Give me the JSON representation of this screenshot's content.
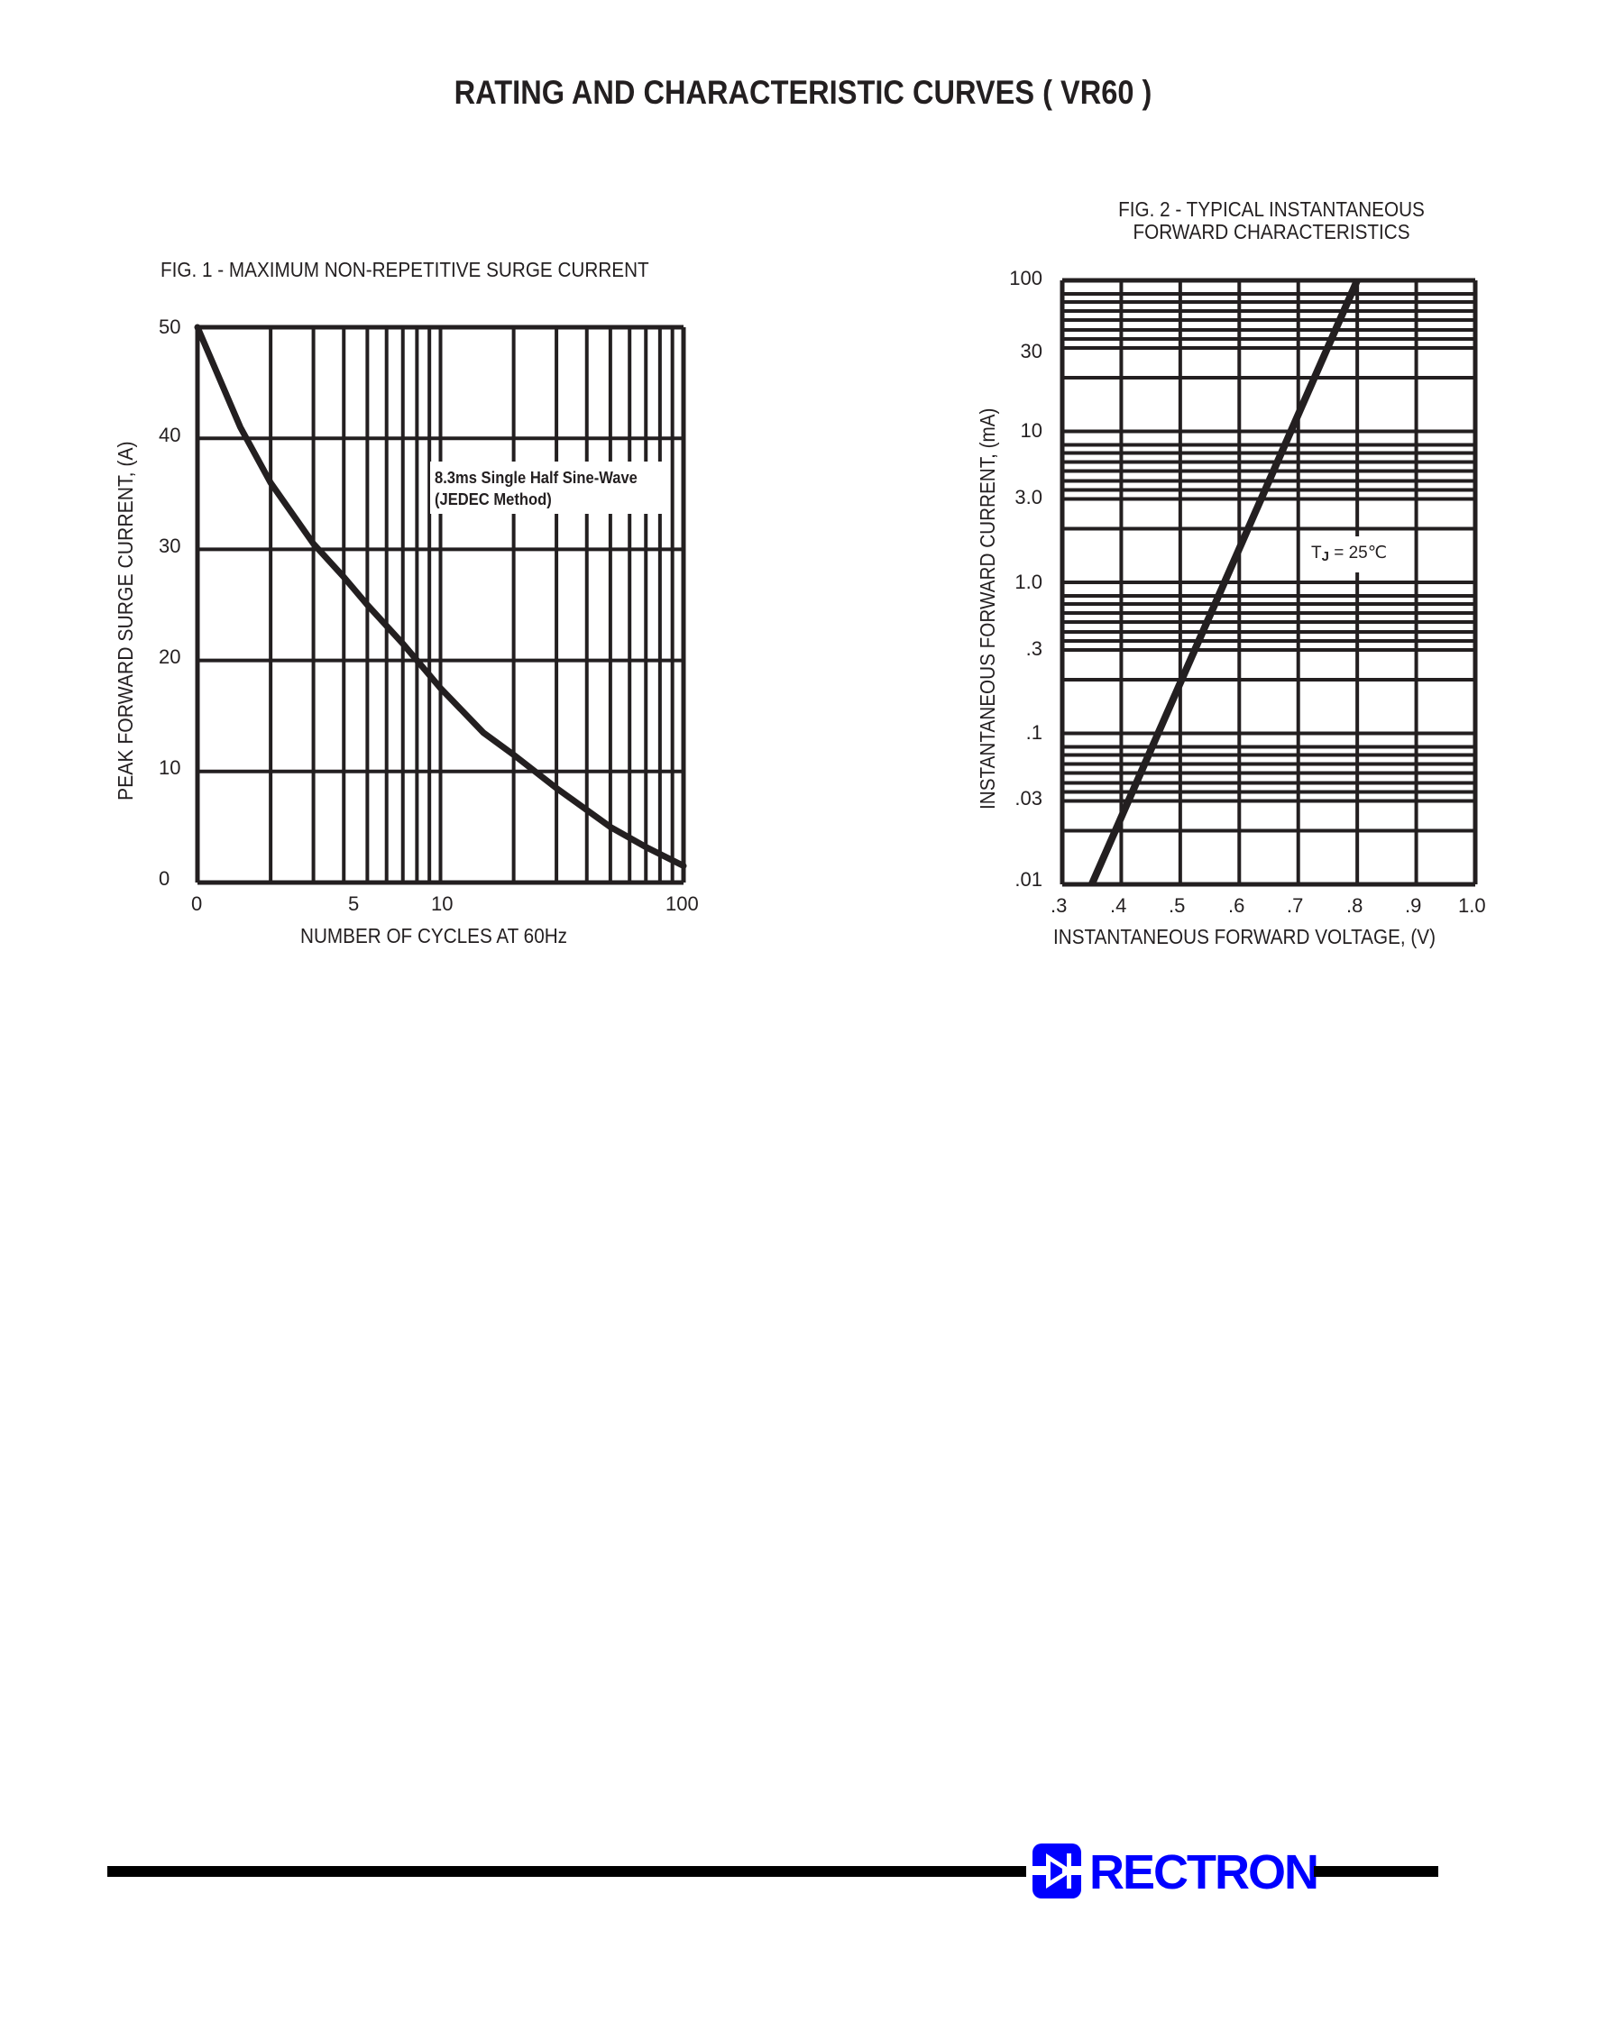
{
  "page": {
    "title": "RATING AND CHARACTERISTIC CURVES ( VR60 )"
  },
  "footer": {
    "brand": "RECTRON",
    "brand_color": "#0000ff",
    "logo_icon": "diode-icon"
  },
  "fig1": {
    "title": "FIG. 1 - MAXIMUM NON-REPETITIVE SURGE CURRENT",
    "ylabel": "PEAK FORWARD SURGE CURRENT, (A)",
    "xlabel": "NUMBER OF CYCLES AT 60Hz",
    "y_ticks": [
      "0",
      "10",
      "20",
      "30",
      "40",
      "50"
    ],
    "x_ticks": [
      "0",
      "5",
      "10",
      "100"
    ],
    "annotation_line1": "8.3ms Single Half Sine-Wave",
    "annotation_line2": "(JEDEC Method)"
  },
  "fig2": {
    "title_line1": "FIG. 2 - TYPICAL INSTANTANEOUS",
    "title_line2": "FORWARD CHARACTERISTICS",
    "ylabel": "INSTANTANEOUS FORWARD CURRENT, (mA)",
    "xlabel": "INSTANTANEOUS FORWARD VOLTAGE, (V)",
    "y_ticks": [
      "100",
      "30",
      "10",
      "3.0",
      "1.0",
      ".3",
      ".1",
      ".03",
      ".01"
    ],
    "x_ticks": [
      ".3",
      ".4",
      ".5",
      ".6",
      ".7",
      ".8",
      ".9",
      "1.0"
    ],
    "annotation_t": "T",
    "annotation_sub": "J",
    "annotation_rest": " = 25℃"
  },
  "chart_data": [
    {
      "type": "line",
      "title": "FIG. 1 - MAXIMUM NON-REPETITIVE SURGE CURRENT",
      "xlabel": "NUMBER OF CYCLES AT 60Hz",
      "ylabel": "PEAK FORWARD SURGE CURRENT, (A)",
      "x_scale": "log",
      "x_range": [
        1,
        100
      ],
      "x_tick_labels": [
        "0",
        "5",
        "10",
        "100"
      ],
      "ylim": [
        0,
        50
      ],
      "y_tick_labels": [
        "0",
        "10",
        "20",
        "30",
        "40",
        "50"
      ],
      "grid": true,
      "annotations": [
        "8.3ms Single Half Sine-Wave",
        "(JEDEC Method)"
      ],
      "series": [
        {
          "name": "Peak forward surge current",
          "x": [
            1,
            1.5,
            2,
            3,
            4,
            5,
            7,
            10,
            15,
            20,
            30,
            50,
            70,
            100
          ],
          "y": [
            50,
            41,
            36,
            30.5,
            27.5,
            25,
            21.5,
            17.5,
            13.5,
            11.5,
            8.5,
            5,
            3.2,
            1.5
          ]
        }
      ]
    },
    {
      "type": "line",
      "title": "FIG. 2 - TYPICAL INSTANTANEOUS FORWARD CHARACTERISTICS",
      "xlabel": "INSTANTANEOUS FORWARD VOLTAGE, (V)",
      "ylabel": "INSTANTANEOUS FORWARD CURRENT, (mA)",
      "xlim": [
        0.3,
        1.0
      ],
      "x_tick_labels": [
        ".3",
        ".4",
        ".5",
        ".6",
        ".7",
        ".8",
        ".9",
        "1.0"
      ],
      "y_scale": "log",
      "ylim": [
        0.01,
        100
      ],
      "y_tick_labels": [
        "100",
        "30",
        "10",
        "3.0",
        "1.0",
        ".3",
        ".1",
        ".03",
        ".01"
      ],
      "grid": true,
      "annotations": [
        "TJ = 25℃"
      ],
      "series": [
        {
          "name": "TJ = 25℃",
          "x": [
            0.35,
            0.4,
            0.5,
            0.6,
            0.7,
            0.8
          ],
          "y": [
            0.01,
            0.023,
            0.18,
            1.5,
            12,
            100
          ]
        }
      ]
    }
  ]
}
